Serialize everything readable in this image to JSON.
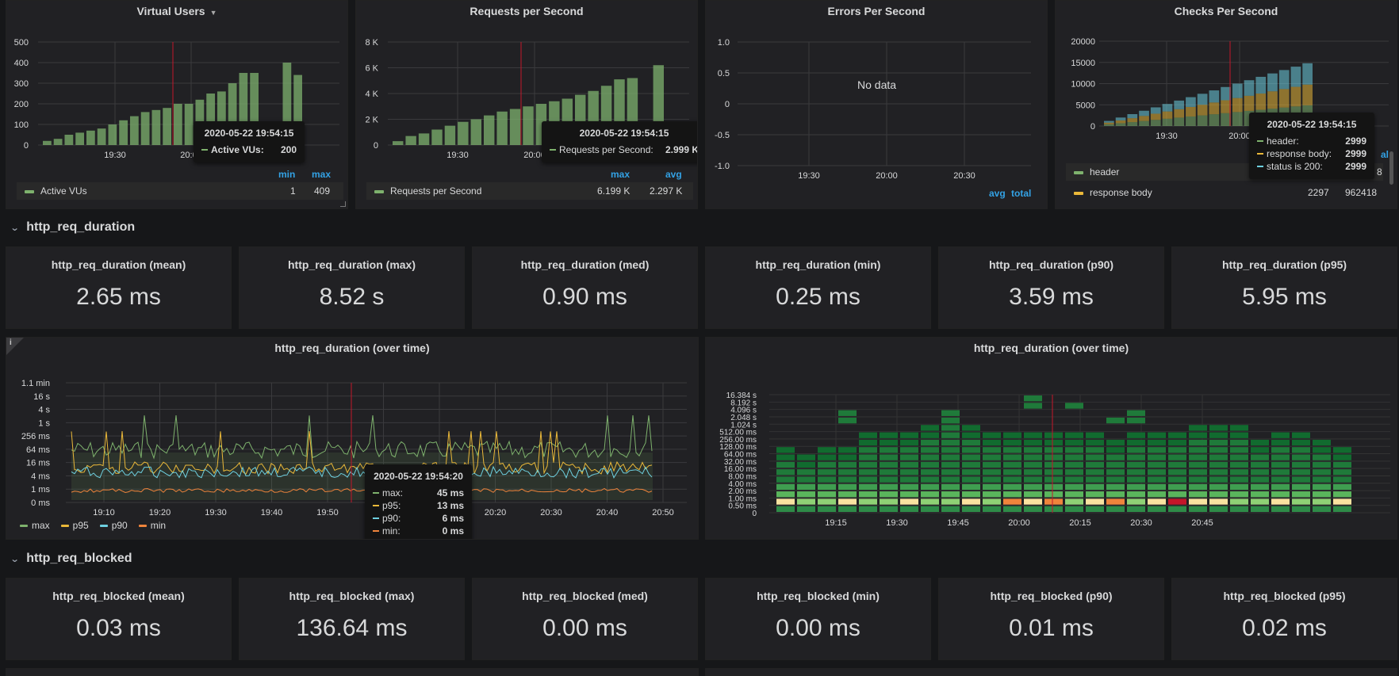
{
  "panels": {
    "vus": {
      "title": "Virtual Users",
      "y_ticks": [
        "500",
        "400",
        "300",
        "200",
        "100",
        "0"
      ],
      "x_ticks": [
        "19:30",
        "20:00"
      ],
      "legend_headers": {
        "min": "min",
        "max": "max"
      },
      "legend": [
        {
          "label": "Active VUs",
          "min": "1",
          "max": "409",
          "color": "#7eb26d"
        }
      ],
      "tooltip": {
        "time": "2020-05-22 19:54:15",
        "label": "Active VUs:",
        "value": "200"
      },
      "chart_data": {
        "type": "bar",
        "series": [
          {
            "name": "Active VUs",
            "values": [
              20,
              30,
              50,
              60,
              70,
              80,
              100,
              120,
              140,
              160,
              170,
              180,
              200,
              200,
              220,
              250,
              260,
              300,
              350,
              350,
              0,
              0,
              400,
              340
            ]
          }
        ],
        "ylim": [
          0,
          500
        ]
      }
    },
    "rps": {
      "title": "Requests per Second",
      "y_ticks": [
        "8 K",
        "6 K",
        "4 K",
        "2 K",
        "0"
      ],
      "x_ticks": [
        "19:30",
        "20:00"
      ],
      "legend_headers": {
        "max": "max",
        "avg": "avg"
      },
      "legend": [
        {
          "label": "Requests per Second",
          "max": "6.199 K",
          "avg": "2.297 K",
          "color": "#7eb26d"
        }
      ],
      "tooltip": {
        "time": "2020-05-22 19:54:15",
        "label": "Requests per Second:",
        "value": "2.999 K"
      },
      "chart_data": {
        "type": "bar",
        "series": [
          {
            "name": "Requests per Second",
            "values": [
              0.3,
              0.7,
              0.9,
              1.2,
              1.5,
              1.8,
              2.0,
              2.3,
              2.6,
              2.8,
              3.0,
              3.2,
              3.4,
              3.6,
              3.9,
              4.2,
              4.6,
              5.1,
              5.2,
              0,
              6.2
            ]
          }
        ],
        "ylim": [
          0,
          8
        ]
      }
    },
    "errors": {
      "title": "Errors Per Second",
      "y_ticks": [
        "1.0",
        "0.5",
        "0",
        "-0.5",
        "-1.0"
      ],
      "x_ticks": [
        "19:30",
        "20:00",
        "20:30"
      ],
      "no_data": "No data",
      "legend_headers": {
        "avg": "avg",
        "total": "total"
      }
    },
    "checks": {
      "title": "Checks Per Second",
      "y_ticks": [
        "20000",
        "15000",
        "10000",
        "5000",
        "0"
      ],
      "x_ticks": [
        "19:30",
        "20:00"
      ],
      "legend_extra": "al",
      "legend_extra2": "8",
      "legend": [
        {
          "label": "header",
          "color": "#7eb26d",
          "v1": "",
          "v2": ""
        },
        {
          "label": "response body",
          "color": "#eab839",
          "v1": "2297",
          "v2": "962418"
        }
      ],
      "tooltip": {
        "time": "2020-05-22 19:54:15",
        "rows": [
          {
            "label": "header:",
            "value": "2999",
            "color": "#7eb26d"
          },
          {
            "label": "response body:",
            "value": "2999",
            "color": "#eab839"
          },
          {
            "label": "status is 200:",
            "value": "2999",
            "color": "#6ed0e0"
          }
        ]
      }
    }
  },
  "sections": {
    "duration": "http_req_duration",
    "blocked": "http_req_blocked"
  },
  "duration_stats": [
    {
      "title": "http_req_duration (mean)",
      "value": "2.65 ms"
    },
    {
      "title": "http_req_duration (max)",
      "value": "8.52 s"
    },
    {
      "title": "http_req_duration (med)",
      "value": "0.90 ms"
    },
    {
      "title": "http_req_duration (min)",
      "value": "0.25 ms"
    },
    {
      "title": "http_req_duration (p90)",
      "value": "3.59 ms"
    },
    {
      "title": "http_req_duration (p95)",
      "value": "5.95 ms"
    }
  ],
  "blocked_stats": [
    {
      "title": "http_req_blocked (mean)",
      "value": "0.03 ms"
    },
    {
      "title": "http_req_blocked (max)",
      "value": "136.64 ms"
    },
    {
      "title": "http_req_blocked (med)",
      "value": "0.00 ms"
    },
    {
      "title": "http_req_blocked (min)",
      "value": "0.00 ms"
    },
    {
      "title": "http_req_blocked (p90)",
      "value": "0.01 ms"
    },
    {
      "title": "http_req_blocked (p95)",
      "value": "0.02 ms"
    }
  ],
  "duration_timeseries": {
    "title": "http_req_duration (over time)",
    "info_icon": "i",
    "y_ticks": [
      "1.1 min",
      "16 s",
      "4 s",
      "1 s",
      "256 ms",
      "64 ms",
      "16 ms",
      "4 ms",
      "1 ms",
      "0 ms"
    ],
    "x_ticks": [
      "19:10",
      "19:20",
      "19:30",
      "19:40",
      "19:50",
      "20:00",
      "20:10",
      "20:20",
      "20:30",
      "20:40",
      "20:50"
    ],
    "legend": [
      {
        "label": "max",
        "color": "#7eb26d"
      },
      {
        "label": "p95",
        "color": "#eab839"
      },
      {
        "label": "p90",
        "color": "#6ed0e0"
      },
      {
        "label": "min",
        "color": "#ef843c"
      }
    ],
    "tooltip": {
      "time": "2020-05-22 19:54:20",
      "rows": [
        {
          "label": "max:",
          "value": "45 ms",
          "color": "#7eb26d"
        },
        {
          "label": "p95:",
          "value": "13 ms",
          "color": "#eab839"
        },
        {
          "label": "p90:",
          "value": "6 ms",
          "color": "#6ed0e0"
        },
        {
          "label": "min:",
          "value": "0 ms",
          "color": "#ef843c"
        }
      ]
    }
  },
  "duration_heatmap": {
    "title": "http_req_duration (over time)",
    "y_ticks": [
      "16.384 s",
      "8.192 s",
      "4.096 s",
      "2.048 s",
      "1.024 s",
      "512.00 ms",
      "256.00 ms",
      "128.00 ms",
      "64.00 ms",
      "32.00 ms",
      "16.00 ms",
      "8.00 ms",
      "4.00 ms",
      "2.00 ms",
      "1.00 ms",
      "0.50 ms",
      "0"
    ],
    "x_ticks": [
      "19:15",
      "19:30",
      "19:45",
      "20:00",
      "20:15",
      "20:30",
      "20:45"
    ]
  }
}
